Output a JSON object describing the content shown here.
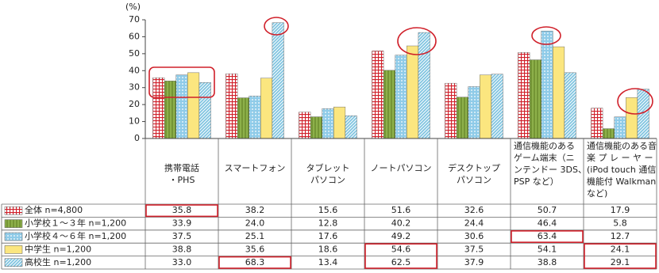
{
  "chart_data": {
    "type": "bar",
    "y_unit": "(%)",
    "categories": [
      [
        "携帯電話",
        "・PHS"
      ],
      [
        "スマートフォン"
      ],
      [
        "タブレット",
        "パソコン"
      ],
      [
        "ノートパソコン"
      ],
      [
        "デスクトップ",
        "パソコン"
      ],
      [
        "通信機能のある",
        "ゲーム端末（ニ",
        "ンテンドー 3DS、",
        "PSP など）"
      ],
      [
        "通信機能のある音",
        "楽 プ レ ー ヤ ー",
        "(iPod touch 通信",
        "機能付 Walkman",
        "など)"
      ]
    ],
    "series": [
      {
        "name": "全体 n=4,800",
        "color": "#d0202a",
        "pattern": "grid",
        "values": [
          35.8,
          38.2,
          15.6,
          51.6,
          32.6,
          50.7,
          17.9
        ],
        "value_labels": [
          "35.8",
          "38.2",
          "15.6",
          "51.6",
          "32.6",
          "50.7",
          "17.9"
        ]
      },
      {
        "name": "小学校１～３年 n=1,200",
        "color": "#8db04a",
        "pattern": "vstripe",
        "values": [
          33.9,
          24.0,
          12.8,
          40.2,
          24.4,
          46.4,
          5.8
        ],
        "value_labels": [
          "33.9",
          "24.0",
          "12.8",
          "40.2",
          "24.4",
          "46.4",
          "5.8"
        ]
      },
      {
        "name": "小学校４～６年 n=1,200",
        "color": "#8fcbe8",
        "pattern": "dots",
        "values": [
          37.5,
          25.1,
          17.6,
          49.2,
          30.6,
          63.4,
          12.7
        ],
        "value_labels": [
          "37.5",
          "25.1",
          "17.6",
          "49.2",
          "30.6",
          "63.4",
          "12.7"
        ]
      },
      {
        "name": "中学生 n=1,200",
        "color": "#fbe67f",
        "pattern": "solid",
        "values": [
          38.8,
          35.6,
          18.6,
          54.6,
          37.5,
          54.1,
          24.1
        ],
        "value_labels": [
          "38.8",
          "35.6",
          "18.6",
          "54.6",
          "37.5",
          "54.1",
          "24.1"
        ]
      },
      {
        "name": "高校生 n=1,200",
        "color": "#7fc4e0",
        "pattern": "diag",
        "values": [
          33.0,
          68.3,
          13.4,
          62.5,
          37.9,
          38.8,
          29.1
        ],
        "value_labels": [
          "33.0",
          "68.3",
          "13.4",
          "62.5",
          "37.9",
          "38.8",
          "29.1"
        ]
      }
    ],
    "ylim": [
      0,
      70
    ],
    "yticks": [
      0,
      10,
      20,
      30,
      40,
      50,
      60,
      70
    ]
  }
}
